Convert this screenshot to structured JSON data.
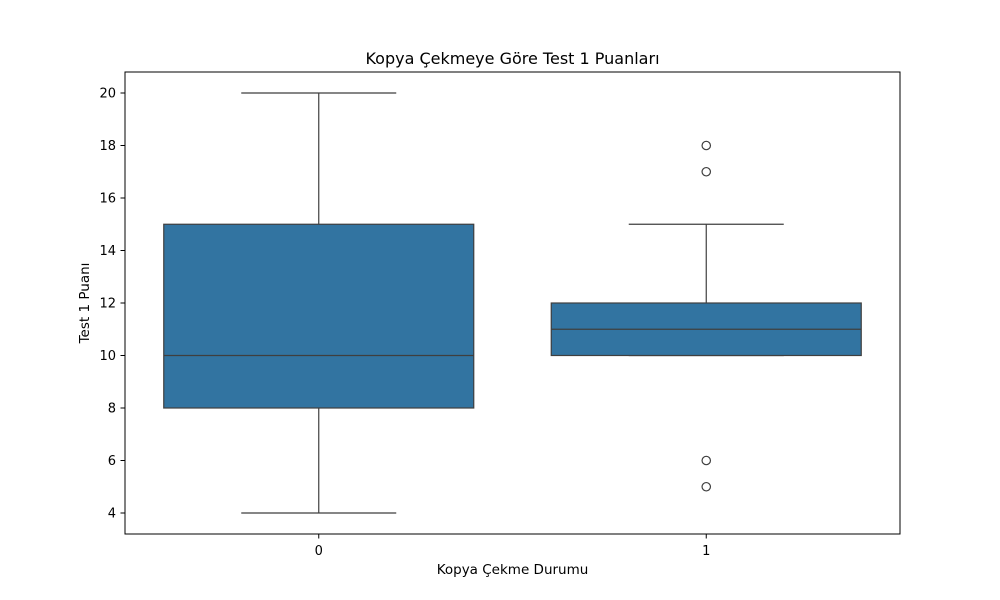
{
  "chart_data": {
    "type": "box",
    "title": "Kopya Çekmeye Göre Test 1 Puanları",
    "xlabel": "Kopya Çekme Durumu",
    "ylabel": "Test 1 Puanı",
    "categories": [
      "0",
      "1"
    ],
    "yticks": [
      "4",
      "6",
      "8",
      "10",
      "12",
      "14",
      "16",
      "18",
      "20"
    ],
    "ylim": [
      3.2,
      20.8
    ],
    "grid": false,
    "box_color": "#3274a1",
    "line_color": "#3f3f3f",
    "boxes": [
      {
        "category": "0",
        "whisker_low": 4,
        "q1": 8,
        "median": 10,
        "q3": 15,
        "whisker_high": 20,
        "outliers": []
      },
      {
        "category": "1",
        "whisker_low": 10,
        "q1": 10,
        "median": 11,
        "q3": 12,
        "whisker_high": 15,
        "outliers": [
          18,
          17,
          6,
          5
        ]
      }
    ]
  }
}
